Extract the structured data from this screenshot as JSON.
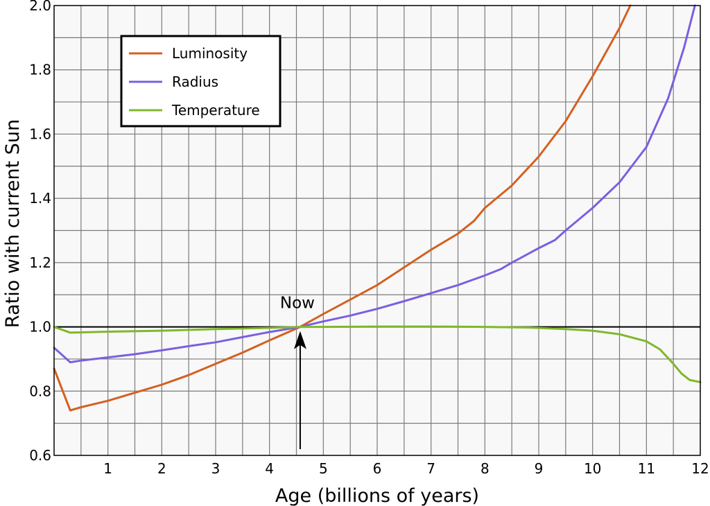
{
  "chart_data": {
    "type": "line",
    "xlabel": "Age (billions of years)",
    "ylabel": "Ratio with current Sun",
    "xlim": [
      0,
      12
    ],
    "ylim": [
      0.6,
      2.0
    ],
    "x_ticks": [
      1,
      2,
      3,
      4,
      5,
      6,
      7,
      8,
      9,
      10,
      11,
      12
    ],
    "y_ticks": [
      0.6,
      0.8,
      1.0,
      1.2,
      1.4,
      1.6,
      1.8,
      2.0
    ],
    "x_tick_labels": [
      "1",
      "2",
      "3",
      "4",
      "5",
      "6",
      "7",
      "8",
      "9",
      "10",
      "11",
      "12"
    ],
    "y_tick_labels": [
      "0.6",
      "0.8",
      "1.0",
      "1.2",
      "1.4",
      "1.6",
      "1.8",
      "2.0"
    ],
    "grid": true,
    "reference_line": 1.0,
    "legend_position": "top-left",
    "annotation": {
      "text": "Now",
      "x": 4.57,
      "y": 1.0
    },
    "series": [
      {
        "name": "Luminosity",
        "color": "#d4601f",
        "points": [
          [
            0.0,
            0.87
          ],
          [
            0.3,
            0.74
          ],
          [
            0.5,
            0.75
          ],
          [
            1.0,
            0.77
          ],
          [
            1.5,
            0.795
          ],
          [
            2.0,
            0.82
          ],
          [
            2.5,
            0.85
          ],
          [
            3.0,
            0.885
          ],
          [
            3.5,
            0.92
          ],
          [
            4.0,
            0.958
          ],
          [
            4.57,
            1.0
          ],
          [
            5.0,
            1.04
          ],
          [
            5.5,
            1.085
          ],
          [
            6.0,
            1.13
          ],
          [
            6.5,
            1.185
          ],
          [
            7.0,
            1.24
          ],
          [
            7.5,
            1.29
          ],
          [
            7.8,
            1.33
          ],
          [
            8.0,
            1.37
          ],
          [
            8.5,
            1.44
          ],
          [
            9.0,
            1.53
          ],
          [
            9.5,
            1.64
          ],
          [
            10.0,
            1.78
          ],
          [
            10.5,
            1.93
          ],
          [
            10.7,
            2.0
          ]
        ]
      },
      {
        "name": "Radius",
        "color": "#7b5fe0",
        "points": [
          [
            0.0,
            0.935
          ],
          [
            0.3,
            0.89
          ],
          [
            0.5,
            0.895
          ],
          [
            1.0,
            0.905
          ],
          [
            1.5,
            0.915
          ],
          [
            2.0,
            0.927
          ],
          [
            2.5,
            0.94
          ],
          [
            3.0,
            0.952
          ],
          [
            3.5,
            0.968
          ],
          [
            4.0,
            0.984
          ],
          [
            4.57,
            1.0
          ],
          [
            5.0,
            1.017
          ],
          [
            5.5,
            1.035
          ],
          [
            6.0,
            1.056
          ],
          [
            6.5,
            1.08
          ],
          [
            7.0,
            1.105
          ],
          [
            7.5,
            1.13
          ],
          [
            8.0,
            1.16
          ],
          [
            8.3,
            1.18
          ],
          [
            8.5,
            1.2
          ],
          [
            9.0,
            1.245
          ],
          [
            9.3,
            1.27
          ],
          [
            9.5,
            1.3
          ],
          [
            10.0,
            1.37
          ],
          [
            10.5,
            1.45
          ],
          [
            11.0,
            1.56
          ],
          [
            11.4,
            1.71
          ],
          [
            11.7,
            1.87
          ],
          [
            11.9,
            2.0
          ]
        ]
      },
      {
        "name": "Temperature",
        "color": "#7fb82a",
        "points": [
          [
            0.0,
            1.0
          ],
          [
            0.3,
            0.982
          ],
          [
            0.5,
            0.983
          ],
          [
            1.0,
            0.985
          ],
          [
            2.0,
            0.988
          ],
          [
            3.0,
            0.993
          ],
          [
            4.0,
            0.997
          ],
          [
            4.57,
            1.0
          ],
          [
            5.0,
            1.0
          ],
          [
            6.0,
            1.001
          ],
          [
            7.0,
            1.001
          ],
          [
            8.0,
            1.0
          ],
          [
            8.8,
            0.998
          ],
          [
            9.5,
            0.993
          ],
          [
            10.0,
            0.988
          ],
          [
            10.5,
            0.977
          ],
          [
            11.0,
            0.955
          ],
          [
            11.25,
            0.93
          ],
          [
            11.5,
            0.885
          ],
          [
            11.65,
            0.855
          ],
          [
            11.8,
            0.835
          ],
          [
            12.0,
            0.828
          ]
        ]
      }
    ]
  }
}
